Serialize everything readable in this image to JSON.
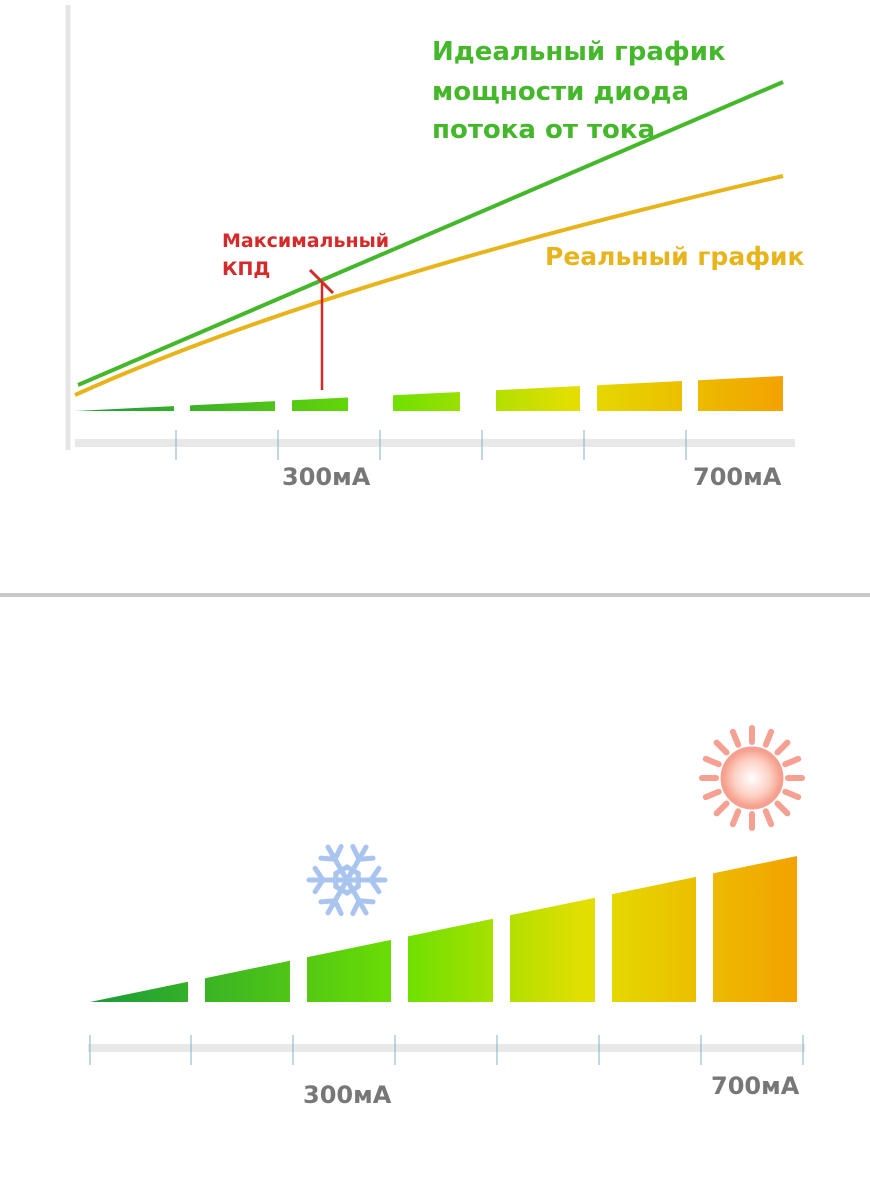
{
  "top": {
    "ideal_label": [
      "Идеальный график",
      "мощности диода",
      "потока от тока"
    ],
    "real_label": "Реальный график",
    "efficiency_label": [
      "Максимальный",
      "КПД"
    ],
    "axis_labels": [
      "300мА",
      "700мА"
    ]
  },
  "bottom": {
    "axis_labels": [
      "300мА",
      "700мА"
    ]
  }
}
